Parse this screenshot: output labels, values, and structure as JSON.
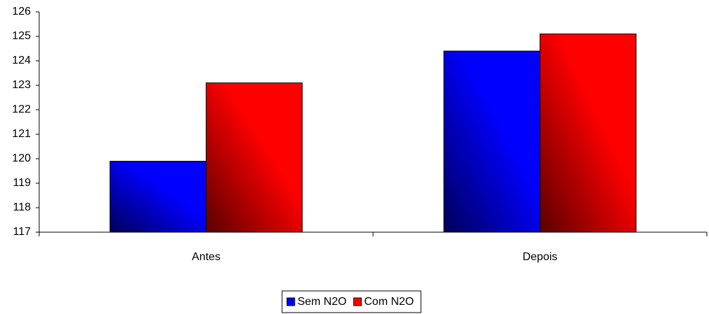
{
  "chart_data": {
    "type": "bar",
    "categories": [
      "Antes",
      "Depois"
    ],
    "series": [
      {
        "name": "Sem N2O",
        "color": "#0000ff",
        "values": [
          119.9,
          124.4
        ]
      },
      {
        "name": "Com N2O",
        "color": "#ff0000",
        "values": [
          123.1,
          125.1
        ]
      }
    ],
    "ylim": [
      117,
      126
    ],
    "yticks": [
      117,
      118,
      119,
      120,
      121,
      122,
      123,
      124,
      125,
      126
    ],
    "grid": false,
    "legend": "bottom"
  }
}
